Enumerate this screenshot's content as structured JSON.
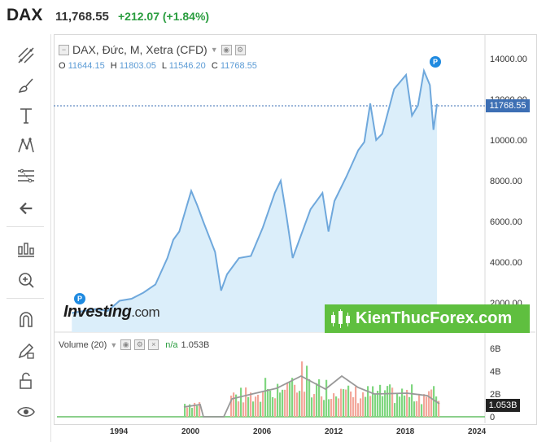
{
  "header": {
    "symbol": "DAX",
    "price": "11,768.55",
    "change": "+212.07 (+1.84%)"
  },
  "toolbar": {
    "icons": [
      "trend-line-icon",
      "brush-icon",
      "text-icon",
      "pattern-icon",
      "fib-icon",
      "back-arrow-icon",
      "ruler-icon",
      "zoom-in-icon",
      "magnet-icon",
      "lock-pencil-icon",
      "unlock-icon",
      "eye-icon"
    ]
  },
  "legend": {
    "title": "DAX, Đức, M, Xetra (CFD)",
    "o_label": "O",
    "o": "11644.15",
    "h_label": "H",
    "h": "11803.05",
    "l_label": "L",
    "l": "11546.20",
    "c_label": "C",
    "c": "11768.55"
  },
  "volume_legend": {
    "label": "Volume (20)",
    "na": "n/a",
    "value": "1.053B"
  },
  "price_badge": "11768.55",
  "volume_badge": "1.053B",
  "watermarks": {
    "investing": "Investing",
    "investing_com": ".com",
    "kienthuc": "KienThucForex.com"
  },
  "colors": {
    "line": "#6fa8dc",
    "fill": "#dbeefa",
    "up": "#7fd67f",
    "down": "#f3a79b",
    "badge": "#3d6fb4"
  },
  "chart_data": {
    "type": "area",
    "title": "DAX, Đức, M, Xetra (CFD)",
    "ylim": [
      0,
      15000
    ],
    "y_ticks": [
      "14000.00",
      "12000.00",
      "10000.00",
      "8000.00",
      "6000.00",
      "4000.00",
      "2000.00"
    ],
    "x_ticks": [
      "1994",
      "2000",
      "2006",
      "2012",
      "2018",
      "2024"
    ],
    "x": [
      1990,
      1991,
      1992,
      1993,
      1994,
      1995,
      1996,
      1997,
      1998,
      1998.5,
      1999,
      2000,
      2000.5,
      2001,
      2002,
      2002.5,
      2003,
      2004,
      2005,
      2006,
      2007,
      2007.5,
      2008,
      2008.5,
      2009,
      2010,
      2011,
      2011.5,
      2012,
      2013,
      2014,
      2014.5,
      2015,
      2015.5,
      2016,
      2017,
      2018,
      2018.5,
      2019,
      2019.5,
      2020,
      2020.3,
      2020.6
    ],
    "values": [
      1500,
      1600,
      1700,
      1600,
      2100,
      2200,
      2500,
      2900,
      4200,
      5100,
      5500,
      7500,
      6800,
      6000,
      4500,
      2600,
      3400,
      4200,
      4300,
      5700,
      7400,
      8000,
      6200,
      4200,
      5000,
      6600,
      7400,
      5500,
      7000,
      8200,
      9500,
      9900,
      11800,
      10000,
      10300,
      12500,
      13200,
      11200,
      11700,
      13400,
      12700,
      10500,
      11768
    ]
  },
  "volume_data": {
    "type": "bar",
    "y_ticks": [
      "6B",
      "4B",
      "2B",
      "0"
    ],
    "ylim": [
      0,
      7
    ]
  }
}
